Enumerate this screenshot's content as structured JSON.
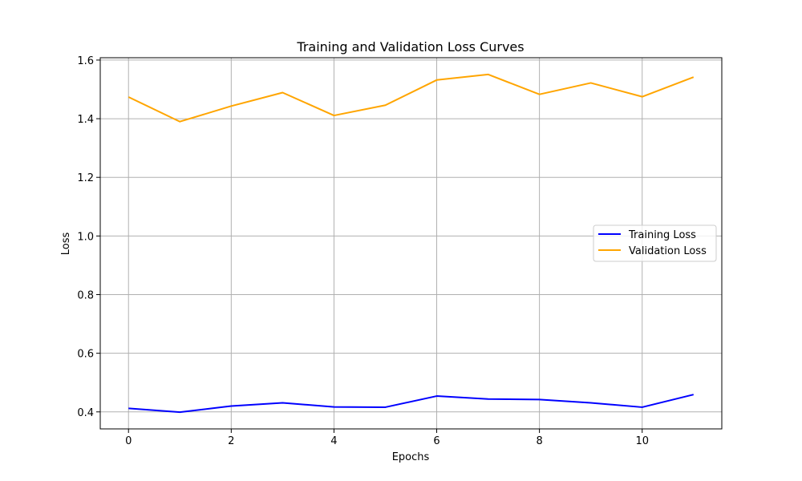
{
  "chart_data": {
    "type": "line",
    "title": "Training and Validation Loss Curves",
    "xlabel": "Epochs",
    "ylabel": "Loss",
    "x": [
      0,
      1,
      2,
      3,
      4,
      5,
      6,
      7,
      8,
      9,
      10,
      11
    ],
    "xlim": [
      -0.55,
      11.55
    ],
    "ylim": [
      0.342,
      1.608
    ],
    "xticks": [
      0,
      2,
      4,
      6,
      8,
      10
    ],
    "yticks": [
      0.4,
      0.6,
      0.8,
      1.0,
      1.2,
      1.4,
      1.6
    ],
    "xtick_labels": [
      "0",
      "2",
      "4",
      "6",
      "8",
      "10"
    ],
    "ytick_labels": [
      "0.4",
      "0.6",
      "0.8",
      "1.0",
      "1.2",
      "1.4",
      "1.6"
    ],
    "grid": true,
    "legend_position": "center-right",
    "series": [
      {
        "name": "Training Loss",
        "color": "#0000ff",
        "values": [
          0.412,
          0.399,
          0.42,
          0.431,
          0.417,
          0.416,
          0.454,
          0.444,
          0.442,
          0.431,
          0.416,
          0.459
        ]
      },
      {
        "name": "Validation Loss",
        "color": "#ffa500",
        "values": [
          1.474,
          1.39,
          1.443,
          1.489,
          1.411,
          1.446,
          1.532,
          1.551,
          1.483,
          1.522,
          1.475,
          1.542
        ]
      }
    ]
  }
}
